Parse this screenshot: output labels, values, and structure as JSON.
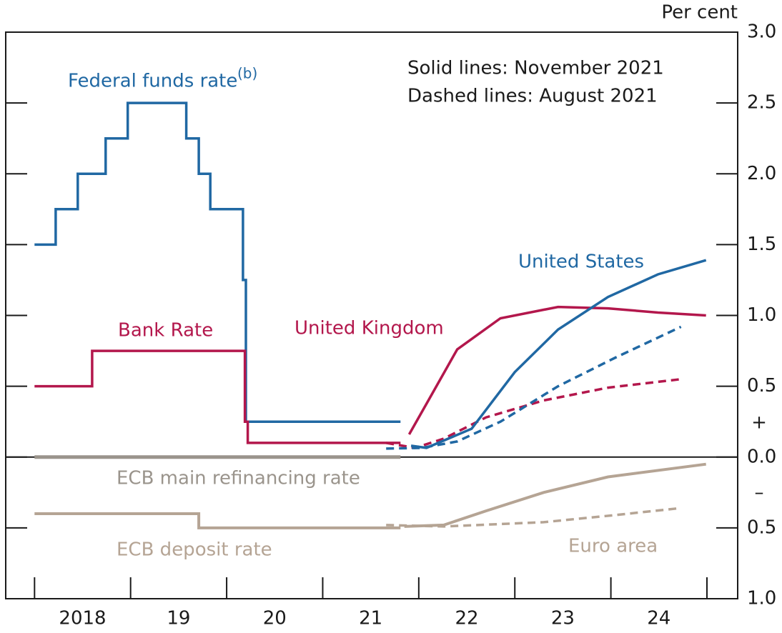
{
  "chart_data": {
    "type": "line",
    "y_unit_label": "Per cent",
    "notes": [
      "Solid lines: November 2021",
      "Dashed lines: August 2021"
    ],
    "labels": [
      {
        "text": "Federal funds rate",
        "color": "#2068a3"
      },
      {
        "text": "(b)",
        "color": "#2068a3"
      },
      {
        "text": "Bank Rate",
        "color": "#b3174c"
      },
      {
        "text": "United Kingdom",
        "color": "#b3174c"
      },
      {
        "text": "United States",
        "color": "#2068a3"
      },
      {
        "text": "ECB main refinancing rate",
        "color": "#9a948c"
      },
      {
        "text": "ECB deposit rate",
        "color": "#b5a494"
      },
      {
        "text": "Euro area",
        "color": "#b5a494"
      }
    ],
    "signs": [
      "+",
      "–"
    ],
    "xlim": [
      2017.7,
      2025.32
    ],
    "xtick_marks": [
      2018,
      2019,
      2020,
      2021,
      2022,
      2023,
      2024,
      2025
    ],
    "xticks": [
      {
        "value": 2018.5,
        "label": "2018"
      },
      {
        "value": 2019.5,
        "label": "19"
      },
      {
        "value": 2020.5,
        "label": "20"
      },
      {
        "value": 2021.5,
        "label": "21"
      },
      {
        "value": 2022.5,
        "label": "22"
      },
      {
        "value": 2023.5,
        "label": "23"
      },
      {
        "value": 2024.5,
        "label": "24"
      }
    ],
    "ylim": [
      -1,
      3
    ],
    "yticks": [
      {
        "value": 3,
        "label": "3.0"
      },
      {
        "value": 2.5,
        "label": "2.5"
      },
      {
        "value": 2,
        "label": "2.0"
      },
      {
        "value": 1.5,
        "label": "1.5"
      },
      {
        "value": 1,
        "label": "1.0"
      },
      {
        "value": 0.5,
        "label": "0.5"
      },
      {
        "value": 0,
        "label": "0.0"
      },
      {
        "value": -0.5,
        "label": "0.5"
      },
      {
        "value": -1,
        "label": "1.0"
      }
    ],
    "zero_line": true,
    "series": [
      {
        "color": "#2068a3",
        "dashed": false,
        "width": 3.5,
        "x": [
          2018.0,
          2018.22,
          2018.22,
          2018.45,
          2018.45,
          2018.74,
          2018.74,
          2018.97,
          2018.97,
          2019.58,
          2019.58,
          2019.71,
          2019.71,
          2019.83,
          2019.83,
          2020.17,
          2020.17,
          2020.2,
          2020.2,
          2021.81
        ],
        "values": [
          1.5,
          1.5,
          1.75,
          1.75,
          2.0,
          2.0,
          2.25,
          2.25,
          2.5,
          2.5,
          2.25,
          2.25,
          2.0,
          2.0,
          1.75,
          1.75,
          1.25,
          1.25,
          0.25,
          0.25
        ]
      },
      {
        "color": "#b3174c",
        "dashed": false,
        "width": 3.5,
        "x": [
          2018.0,
          2018.6,
          2018.6,
          2020.19,
          2020.19,
          2020.22,
          2020.22,
          2021.81
        ],
        "values": [
          0.5,
          0.5,
          0.75,
          0.75,
          0.25,
          0.25,
          0.1,
          0.1
        ]
      },
      {
        "color": "#9a948c",
        "dashed": false,
        "width": 5,
        "x": [
          2018.0,
          2021.81
        ],
        "values": [
          0,
          0
        ]
      },
      {
        "color": "#b5a494",
        "dashed": false,
        "width": 4,
        "x": [
          2018.0,
          2019.71,
          2019.71,
          2021.81
        ],
        "values": [
          -0.4,
          -0.4,
          -0.5,
          -0.5
        ]
      },
      {
        "color": "#b3174c",
        "dashed": true,
        "width": 3.5,
        "x": [
          2021.66,
          2021.96,
          2022.26,
          2022.7,
          2023.3,
          2023.97,
          2024.73
        ],
        "values": [
          0.1,
          0.065,
          0.13,
          0.28,
          0.4,
          0.49,
          0.55
        ]
      },
      {
        "color": "#2068a3",
        "dashed": true,
        "width": 3.5,
        "x": [
          2021.66,
          2022.03,
          2022.4,
          2022.85,
          2023.45,
          2024.04,
          2024.73
        ],
        "values": [
          0.06,
          0.065,
          0.11,
          0.25,
          0.5,
          0.7,
          0.92
        ]
      },
      {
        "color": "#b5a494",
        "dashed": true,
        "width": 3.5,
        "x": [
          2021.66,
          2022.26,
          2023.3,
          2024.04,
          2024.73
        ],
        "values": [
          -0.48,
          -0.49,
          -0.46,
          -0.41,
          -0.36
        ]
      },
      {
        "color": "#b3174c",
        "dashed": false,
        "width": 3.5,
        "x": [
          2021.9,
          2022.1,
          2022.4,
          2022.85,
          2023.45,
          2023.97,
          2024.49,
          2024.99
        ],
        "values": [
          0.16,
          0.4,
          0.76,
          0.98,
          1.06,
          1.05,
          1.02,
          1.0
        ]
      },
      {
        "color": "#2068a3",
        "dashed": false,
        "width": 3.5,
        "x": [
          2021.92,
          2022.08,
          2022.55,
          2023.0,
          2023.45,
          2023.97,
          2024.49,
          2024.99
        ],
        "values": [
          0.08,
          0.065,
          0.2,
          0.6,
          0.9,
          1.13,
          1.29,
          1.39
        ]
      },
      {
        "color": "#b5a494",
        "dashed": false,
        "width": 4,
        "x": [
          2021.85,
          2022.26,
          2022.7,
          2023.3,
          2023.97,
          2024.99
        ],
        "values": [
          -0.49,
          -0.48,
          -0.38,
          -0.25,
          -0.14,
          -0.05
        ]
      }
    ]
  }
}
